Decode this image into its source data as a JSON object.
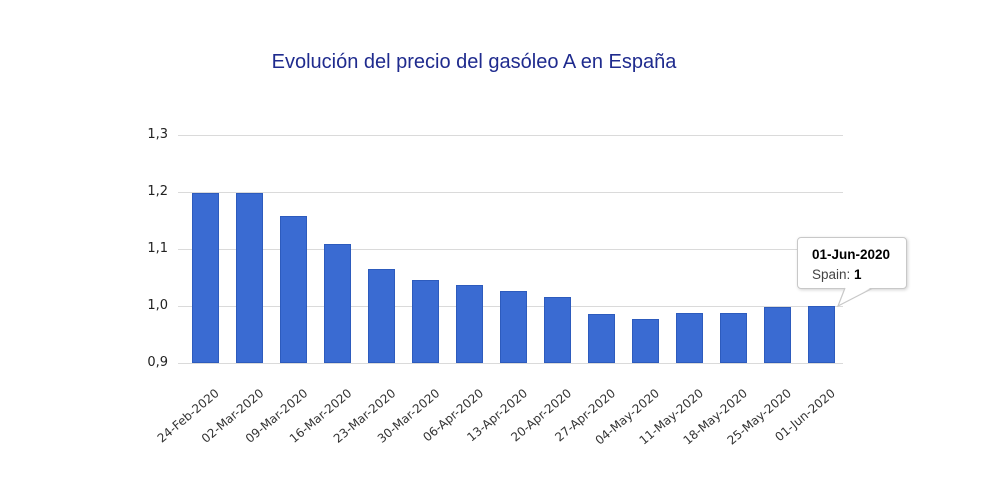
{
  "title": {
    "text": "Evolución del precio del gasóleo A en España",
    "color": "#1f2b8e"
  },
  "chart_data": {
    "type": "bar",
    "title": "Evolución del precio del gasóleo A en España",
    "categories": [
      "24-Feb-2020",
      "02-Mar-2020",
      "09-Mar-2020",
      "16-Mar-2020",
      "23-Mar-2020",
      "30-Mar-2020",
      "06-Apr-2020",
      "13-Apr-2020",
      "20-Apr-2020",
      "27-Apr-2020",
      "04-May-2020",
      "11-May-2020",
      "18-May-2020",
      "25-May-2020",
      "01-Jun-2020"
    ],
    "series": [
      {
        "name": "Spain",
        "values": [
          1.198,
          1.198,
          1.158,
          1.108,
          1.065,
          1.045,
          1.036,
          1.026,
          1.016,
          0.986,
          0.977,
          0.987,
          0.987,
          0.998,
          1.0
        ]
      }
    ],
    "xlabel": "",
    "ylabel": "",
    "ylim": [
      0.9,
      1.3
    ],
    "ytick_values": [
      0.9,
      1.0,
      1.1,
      1.2,
      1.3
    ],
    "ytick_labels": [
      "0,9",
      "1,0",
      "1,1",
      "1,2",
      "1,3"
    ],
    "grid": true,
    "legend": "none",
    "bar_color": "#3a6bd2",
    "gridline_color": "#dadada"
  },
  "tooltip": {
    "date": "01-Jun-2020",
    "series_label": "Spain:",
    "value": "1"
  }
}
